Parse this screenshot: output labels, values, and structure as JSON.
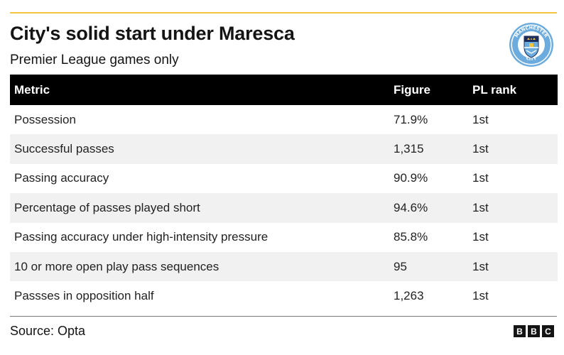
{
  "title": "City's solid start under Maresca",
  "subtitle": "Premier League games only",
  "source": "Source: Opta",
  "crest": {
    "icon": "manchester-city-crest",
    "text_top": "MANCHESTER",
    "text_bottom": "CITY",
    "colors": {
      "ring": "#6cabdd",
      "navy": "#1c2c5b",
      "gold": "#f2c53d"
    }
  },
  "bbc_logo": [
    "B",
    "B",
    "C"
  ],
  "colors": {
    "accent_line": "#f5c542",
    "header_bg": "#000000",
    "header_text": "#ffffff",
    "stripe": "#f1f1f1"
  },
  "chart_data": {
    "type": "table",
    "columns": [
      "Metric",
      "Figure",
      "PL rank"
    ],
    "rows": [
      [
        "Possession",
        "71.9%",
        "1st"
      ],
      [
        "Successful passes",
        "1,315",
        "1st"
      ],
      [
        "Passing accuracy",
        "90.9%",
        "1st"
      ],
      [
        "Percentage of passes played short",
        "94.6%",
        "1st"
      ],
      [
        "Passing accuracy under high-intensity pressure",
        "85.8%",
        "1st"
      ],
      [
        "10 or more open play pass sequences",
        "95",
        "1st"
      ],
      [
        "Passses in opposition half",
        "1,263",
        "1st"
      ]
    ]
  }
}
